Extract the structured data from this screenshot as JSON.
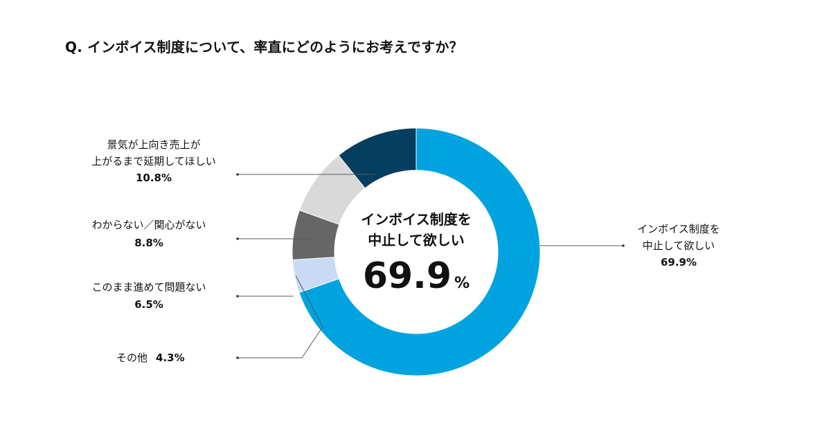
{
  "title": "Q. インボイス制度について、率直にどのようにお考えですか？",
  "center": {
    "line1": "インボイス制度を",
    "line2": "中止して欲しい",
    "value": "69.9",
    "unit": "%"
  },
  "chart_data": {
    "type": "donut",
    "title": "Q. インボイス制度について、率直にどのようにお考えですか？",
    "slices": [
      {
        "label": "インボイス制度を中止して欲しい",
        "label_lines": [
          "インボイス制度を",
          "中止して欲しい"
        ],
        "value": 69.9,
        "pct_text": "69.9%",
        "color": "#00a3e0"
      },
      {
        "label": "その他",
        "label_lines": [
          "その他"
        ],
        "value": 4.3,
        "pct_text": "4.3%",
        "color": "#c9daf5"
      },
      {
        "label": "このまま進めて問題ない",
        "label_lines": [
          "このまま進めて問題ない"
        ],
        "value": 6.5,
        "pct_text": "6.5%",
        "color": "#666666"
      },
      {
        "label": "わからない／関心がない",
        "label_lines": [
          "わからない／関心がない"
        ],
        "value": 8.8,
        "pct_text": "8.8%",
        "color": "#d9d9d9"
      },
      {
        "label": "景気が上向き売上が上がるまで延期してほしい",
        "label_lines": [
          "景気が上向き売上が",
          "上がるまで延期してほしい"
        ],
        "value": 10.8,
        "pct_text": "10.8%",
        "color": "#053e5e"
      }
    ]
  }
}
